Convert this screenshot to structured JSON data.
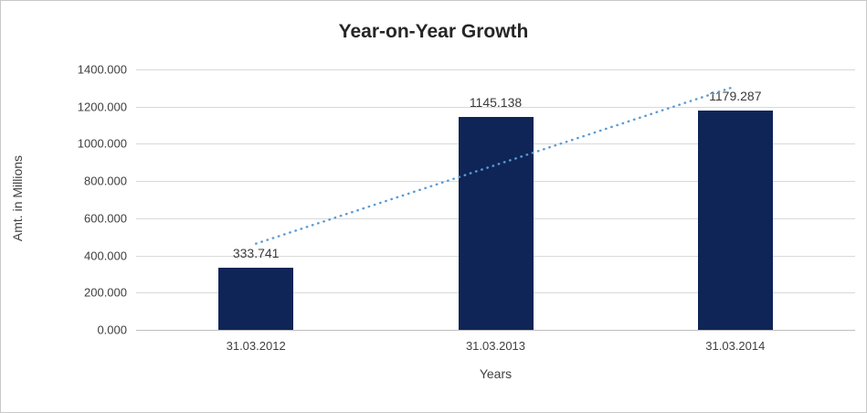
{
  "chart_data": {
    "type": "bar",
    "title": "Year-on-Year Growth",
    "xlabel": "Years",
    "ylabel": "Amt. in Millions",
    "categories": [
      "31.03.2012",
      "31.03.2013",
      "31.03.2014"
    ],
    "values": [
      333.741,
      1145.138,
      1179.287
    ],
    "data_labels": [
      "333.741",
      "1145.138",
      "1179.287"
    ],
    "ylim": [
      0,
      1400
    ],
    "ytick_step": 200,
    "ytick_labels": [
      "0.000",
      "200.000",
      "400.000",
      "600.000",
      "800.000",
      "1000.000",
      "1200.000",
      "1400.000"
    ],
    "grid": true,
    "legend_position": "none",
    "bar_color": "#0f2557",
    "trendline": {
      "type": "linear",
      "style": "dotted",
      "color": "#5b9bd5",
      "start_value": 463.3,
      "end_value": 1308.9
    },
    "colors": {
      "title_text": "#262626",
      "axis_text": "#404040",
      "gridline": "#d9d9d9",
      "axis_line": "#bfbfbf",
      "border": "#c8c8c8",
      "background": "#ffffff"
    }
  }
}
